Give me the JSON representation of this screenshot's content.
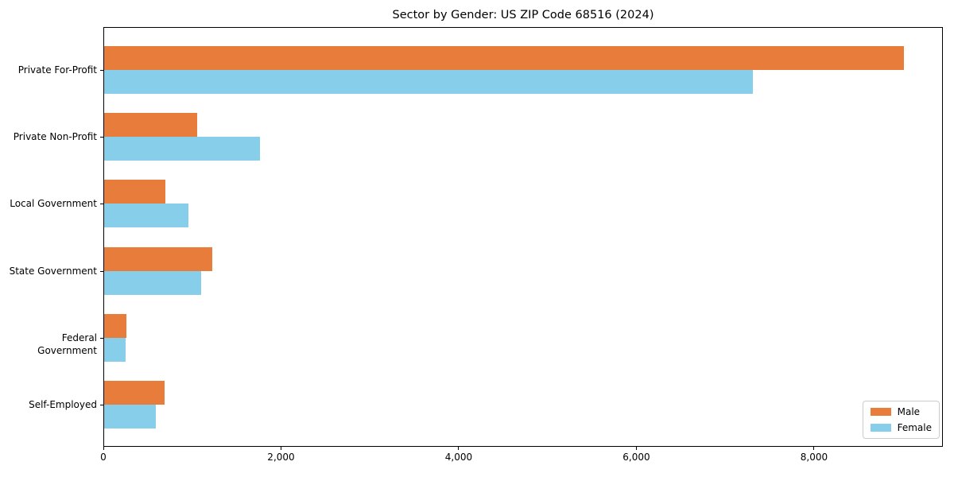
{
  "chart_data": {
    "type": "bar",
    "orientation": "horizontal",
    "title": "Sector by Gender: US ZIP Code 68516 (2024)",
    "categories": [
      "Private For-Profit",
      "Private Non-Profit",
      "Local Government",
      "State Government",
      "Federal Government",
      "Self-Employed"
    ],
    "series": [
      {
        "name": "Male",
        "color": "#e87d3b",
        "values": [
          9000,
          1050,
          690,
          1220,
          250,
          680
        ]
      },
      {
        "name": "Female",
        "color": "#87ceeb",
        "values": [
          7300,
          1750,
          950,
          1090,
          240,
          580
        ]
      }
    ],
    "xlabel": "",
    "ylabel": "",
    "xlim": [
      0,
      9450
    ],
    "xticks": [
      0,
      2000,
      4000,
      6000,
      8000
    ],
    "xtick_labels": [
      "0",
      "2,000",
      "4,000",
      "6,000",
      "8,000"
    ],
    "grid": false,
    "legend": {
      "position": "lower right",
      "entries": [
        "Male",
        "Female"
      ]
    },
    "colors": {
      "male": "#e87d3b",
      "female": "#87ceeb",
      "spine": "#000000",
      "background": "#ffffff"
    }
  }
}
